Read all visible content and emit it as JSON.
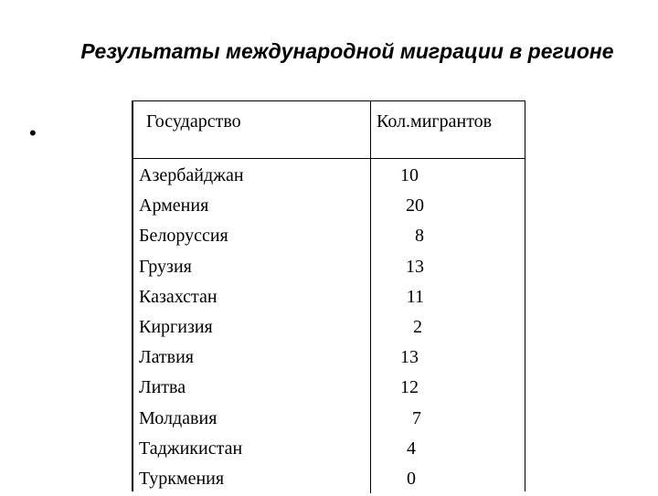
{
  "slide": {
    "title": "Результаты международной миграции в регионе",
    "bullet_char": "•"
  },
  "table": {
    "headers": {
      "country": "Государство",
      "count": "Кол.мигрантов"
    },
    "rows": [
      {
        "country": "Азербайджан",
        "count": "10"
      },
      {
        "country": "Армения",
        "count": "20"
      },
      {
        "country": "Белоруссия",
        "count": "8"
      },
      {
        "country": "Грузия",
        "count": "13"
      },
      {
        "country": "Казахстан",
        "count": "11"
      },
      {
        "country": "Киргизия",
        "count": "2"
      },
      {
        "country": "Латвия",
        "count": "13"
      },
      {
        "country": "Литва",
        "count": "12"
      },
      {
        "country": "Молдавия",
        "count": "7"
      },
      {
        "country": "Таджикистан",
        "count": "4"
      },
      {
        "country": "Туркмения",
        "count": "0"
      }
    ]
  },
  "colors": {
    "text": "#000000",
    "background": "#ffffff",
    "rules": "#000000"
  }
}
